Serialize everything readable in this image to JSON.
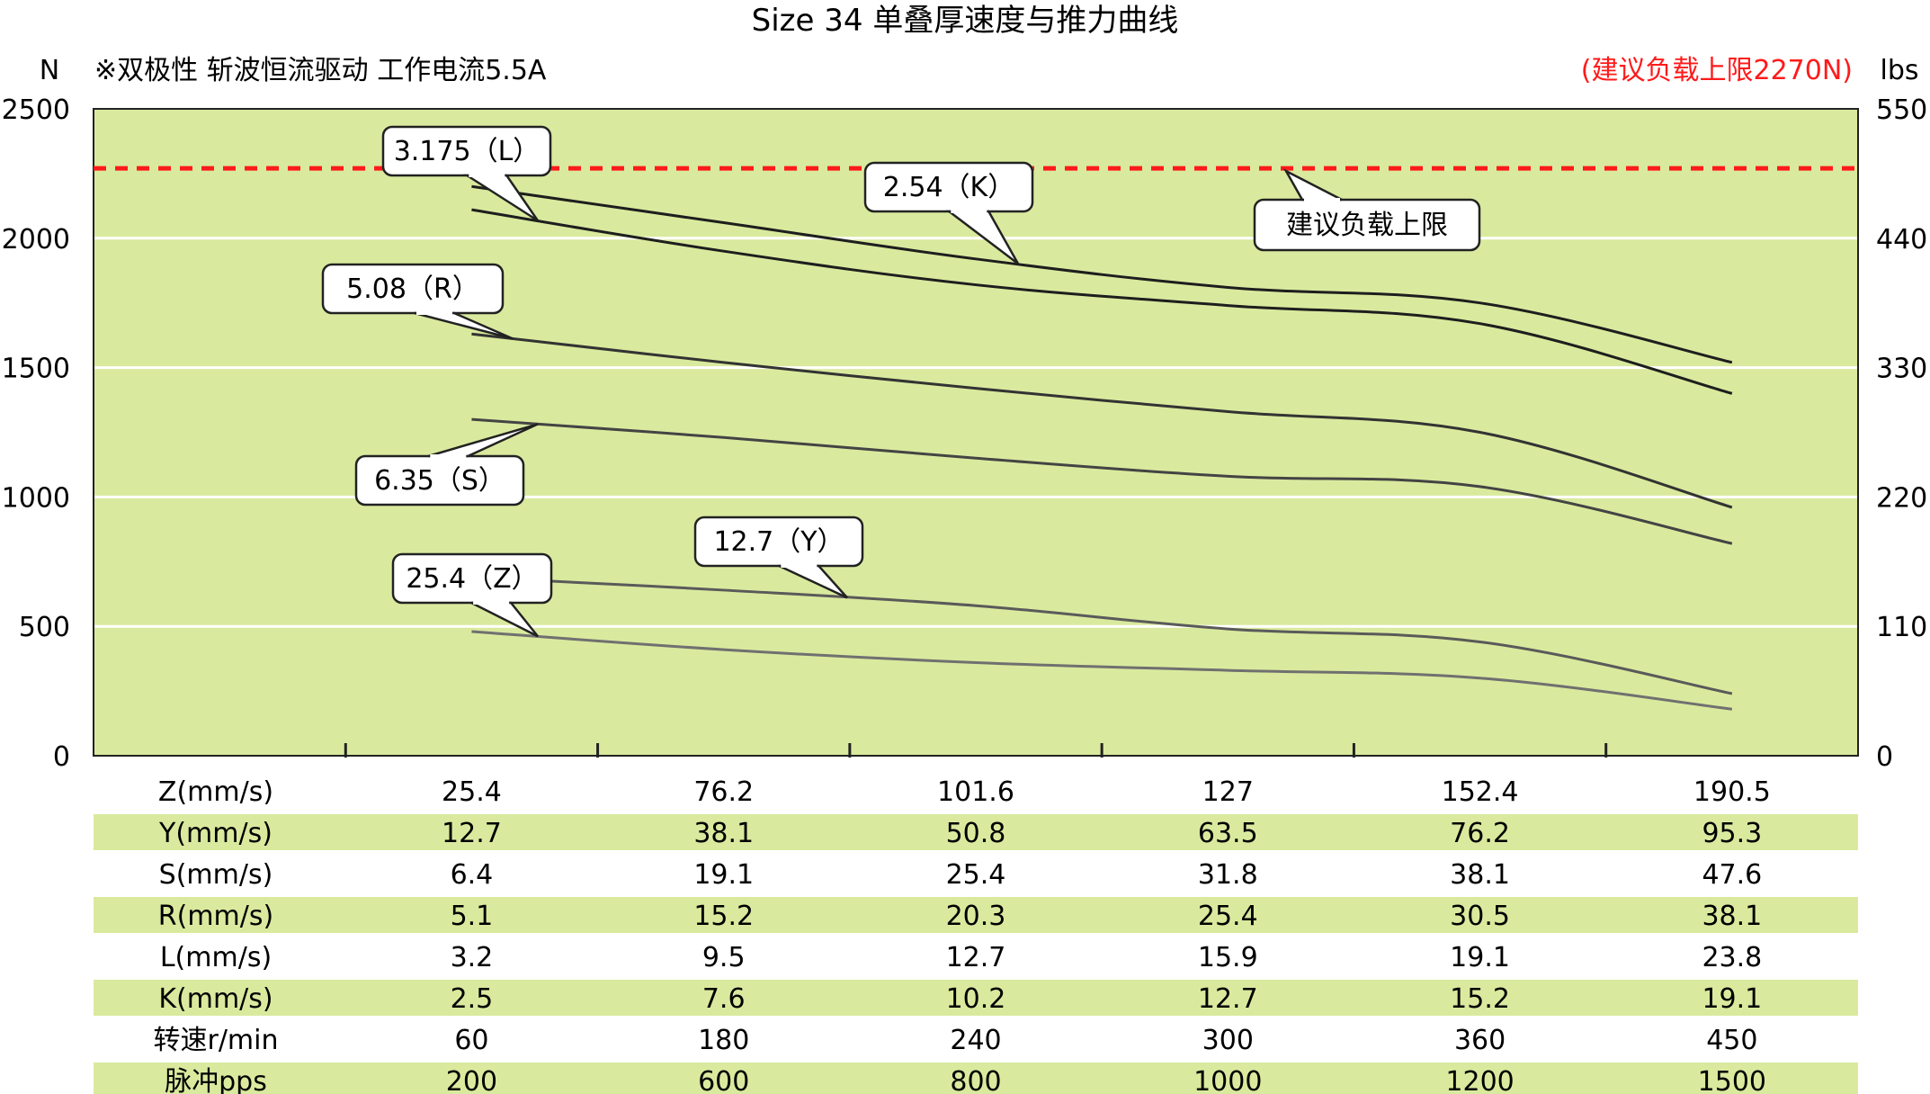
{
  "colors": {
    "plot_bg": "#d9ea9e",
    "grid": "#ffffff",
    "limit": "#ff1a1a",
    "band": "#d9ea9e",
    "axis": "#222222"
  },
  "chart_data": {
    "type": "line",
    "title": "Size 34 单叠厚速度与推力曲线",
    "subtitle": "※双极性 斩波恒流驱动 工作电流5.5A",
    "limit_note": "(建议负载上限2270N)",
    "y_left_unit": "N",
    "y_right_unit": "lbs",
    "y_left_ticks": [
      "2500",
      "2000",
      "1500",
      "1000",
      "500",
      "0"
    ],
    "y_right_ticks": [
      "550",
      "440",
      "330",
      "220",
      "110",
      "0"
    ],
    "ylim": [
      0,
      2500
    ],
    "xlim": [
      0,
      7
    ],
    "grid": true,
    "limit_line": {
      "value": 2270,
      "label": "建议负载上限"
    },
    "x_positions": [
      1.5,
      2.5,
      3.5,
      4.5,
      5.5,
      6.5
    ],
    "series": [
      {
        "name": "3.175（L）",
        "color": "#1e1e1e",
        "values": [
          2200,
          2060,
          1920,
          1810,
          1750,
          1520
        ]
      },
      {
        "name": "2.54（K）",
        "color": "#1e1e1e",
        "values": [
          2110,
          1950,
          1820,
          1740,
          1670,
          1400
        ]
      },
      {
        "name": "5.08（R）",
        "color": "#333333",
        "values": [
          1630,
          1520,
          1420,
          1330,
          1250,
          960
        ]
      },
      {
        "name": "6.35（S）",
        "color": "#444444",
        "values": [
          1300,
          1230,
          1150,
          1080,
          1040,
          820
        ]
      },
      {
        "name": "12.7（Y）",
        "color": "#5a5a5a",
        "values": [
          690,
          640,
          580,
          490,
          440,
          240
        ]
      },
      {
        "name": "25.4（Z）",
        "color": "#707070",
        "values": [
          480,
          410,
          360,
          330,
          300,
          180
        ]
      }
    ],
    "callouts": [
      {
        "label": "3.175（L）",
        "series": 0
      },
      {
        "label": "2.54（K）",
        "series": 0
      },
      {
        "label": "5.08（R）",
        "series": 2
      },
      {
        "label": "6.35（S）",
        "series": 3
      },
      {
        "label": "12.7（Y）",
        "series": 4
      },
      {
        "label": "25.4（Z）",
        "series": 5
      }
    ],
    "table": {
      "columns": 6,
      "rows": [
        {
          "label": "Z(mm/s)",
          "values": [
            "25.4",
            "76.2",
            "101.6",
            "127",
            "152.4",
            "190.5"
          ]
        },
        {
          "label": "Y(mm/s)",
          "values": [
            "12.7",
            "38.1",
            "50.8",
            "63.5",
            "76.2",
            "95.3"
          ]
        },
        {
          "label": "S(mm/s)",
          "values": [
            "6.4",
            "19.1",
            "25.4",
            "31.8",
            "38.1",
            "47.6"
          ]
        },
        {
          "label": "R(mm/s)",
          "values": [
            "5.1",
            "15.2",
            "20.3",
            "25.4",
            "30.5",
            "38.1"
          ]
        },
        {
          "label": "L(mm/s)",
          "values": [
            "3.2",
            "9.5",
            "12.7",
            "15.9",
            "19.1",
            "23.8"
          ]
        },
        {
          "label": "K(mm/s)",
          "values": [
            "2.5",
            "7.6",
            "10.2",
            "12.7",
            "15.2",
            "19.1"
          ]
        },
        {
          "label": "转速r/min",
          "values": [
            "60",
            "180",
            "240",
            "300",
            "360",
            "450"
          ]
        },
        {
          "label": "脉冲pps",
          "values": [
            "200",
            "600",
            "800",
            "1000",
            "1200",
            "1500"
          ]
        }
      ]
    }
  }
}
